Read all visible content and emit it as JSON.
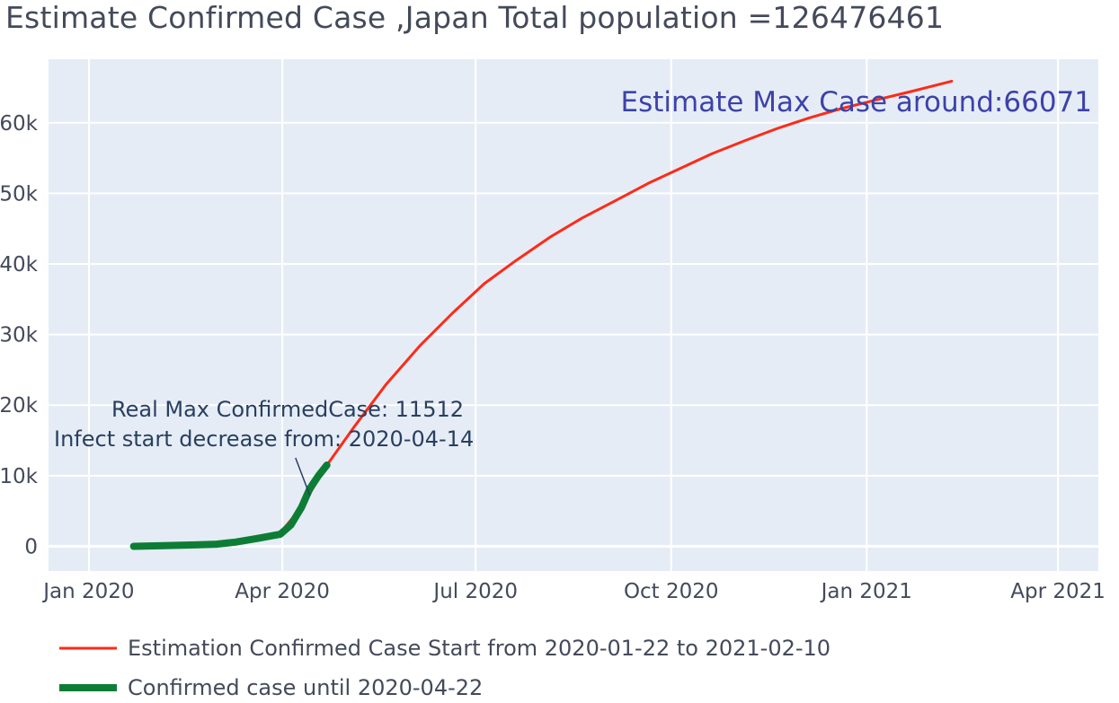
{
  "chart_data": {
    "type": "line",
    "title": "Estimate Confirmed Case ,Japan Total population =126476461",
    "xlabel": "",
    "ylabel": "",
    "x_axis": {
      "type": "date",
      "range": [
        "2019-12-13",
        "2021-04-20"
      ],
      "ticks": [
        {
          "date": "2020-01-01",
          "label": "Jan 2020"
        },
        {
          "date": "2020-04-01",
          "label": "Apr 2020"
        },
        {
          "date": "2020-07-01",
          "label": "Jul 2020"
        },
        {
          "date": "2020-10-01",
          "label": "Oct 2020"
        },
        {
          "date": "2021-01-01",
          "label": "Jan 2021"
        },
        {
          "date": "2021-04-01",
          "label": "Apr 2021"
        }
      ]
    },
    "y_axis": {
      "range": [
        -3500,
        69000
      ],
      "ticks": [
        {
          "value": 0,
          "label": "0"
        },
        {
          "value": 10000,
          "label": "10k"
        },
        {
          "value": 20000,
          "label": "20k"
        },
        {
          "value": 30000,
          "label": "30k"
        },
        {
          "value": 40000,
          "label": "40k"
        },
        {
          "value": 50000,
          "label": "50k"
        },
        {
          "value": 60000,
          "label": "60k"
        }
      ]
    },
    "grid": true,
    "legend_position": "bottom-left",
    "series": [
      {
        "name": "Estimation Confirmed Case Start from 2020-01-22 to 2021-02-10",
        "color": "#ff2a17",
        "line_width": 3,
        "points": [
          {
            "x": "2020-01-22",
            "y": 0
          },
          {
            "x": "2020-02-15",
            "y": 200
          },
          {
            "x": "2020-03-01",
            "y": 500
          },
          {
            "x": "2020-03-15",
            "y": 1000
          },
          {
            "x": "2020-03-31",
            "y": 1900
          },
          {
            "x": "2020-04-10",
            "y": 5500
          },
          {
            "x": "2020-04-22",
            "y": 11500
          },
          {
            "x": "2020-05-05",
            "y": 17000
          },
          {
            "x": "2020-05-20",
            "y": 23000
          },
          {
            "x": "2020-06-05",
            "y": 28500
          },
          {
            "x": "2020-06-20",
            "y": 33000
          },
          {
            "x": "2020-07-05",
            "y": 37200
          },
          {
            "x": "2020-07-20",
            "y": 40500
          },
          {
            "x": "2020-08-05",
            "y": 43800
          },
          {
            "x": "2020-08-20",
            "y": 46500
          },
          {
            "x": "2020-09-05",
            "y": 49000
          },
          {
            "x": "2020-09-20",
            "y": 51400
          },
          {
            "x": "2020-10-05",
            "y": 53500
          },
          {
            "x": "2020-10-20",
            "y": 55600
          },
          {
            "x": "2020-11-05",
            "y": 57500
          },
          {
            "x": "2020-11-20",
            "y": 59200
          },
          {
            "x": "2020-12-05",
            "y": 60700
          },
          {
            "x": "2020-12-20",
            "y": 62000
          },
          {
            "x": "2021-01-05",
            "y": 63200
          },
          {
            "x": "2021-01-20",
            "y": 64300
          },
          {
            "x": "2021-02-10",
            "y": 65900
          }
        ]
      },
      {
        "name": "Confirmed case until 2020-04-22",
        "color": "#0d7d35",
        "line_width": 8,
        "points": [
          {
            "x": "2020-01-22",
            "y": 0
          },
          {
            "x": "2020-02-05",
            "y": 100
          },
          {
            "x": "2020-02-20",
            "y": 200
          },
          {
            "x": "2020-03-01",
            "y": 300
          },
          {
            "x": "2020-03-10",
            "y": 600
          },
          {
            "x": "2020-03-20",
            "y": 1100
          },
          {
            "x": "2020-03-31",
            "y": 1700
          },
          {
            "x": "2020-04-05",
            "y": 3000
          },
          {
            "x": "2020-04-10",
            "y": 5500
          },
          {
            "x": "2020-04-14",
            "y": 8200
          },
          {
            "x": "2020-04-18",
            "y": 10000
          },
          {
            "x": "2020-04-22",
            "y": 11512
          }
        ]
      }
    ],
    "annotations": [
      {
        "lines": [
          "Real Max ConfirmedCase: 11512",
          "Infect start decrease from: 2020-04-14"
        ],
        "arrow_to": {
          "x": "2020-04-14",
          "y": 8200
        },
        "color": "#2a3f5f"
      },
      {
        "lines": [
          "Estimate Max Case around:66071"
        ],
        "color": "#3d42a8"
      }
    ]
  }
}
